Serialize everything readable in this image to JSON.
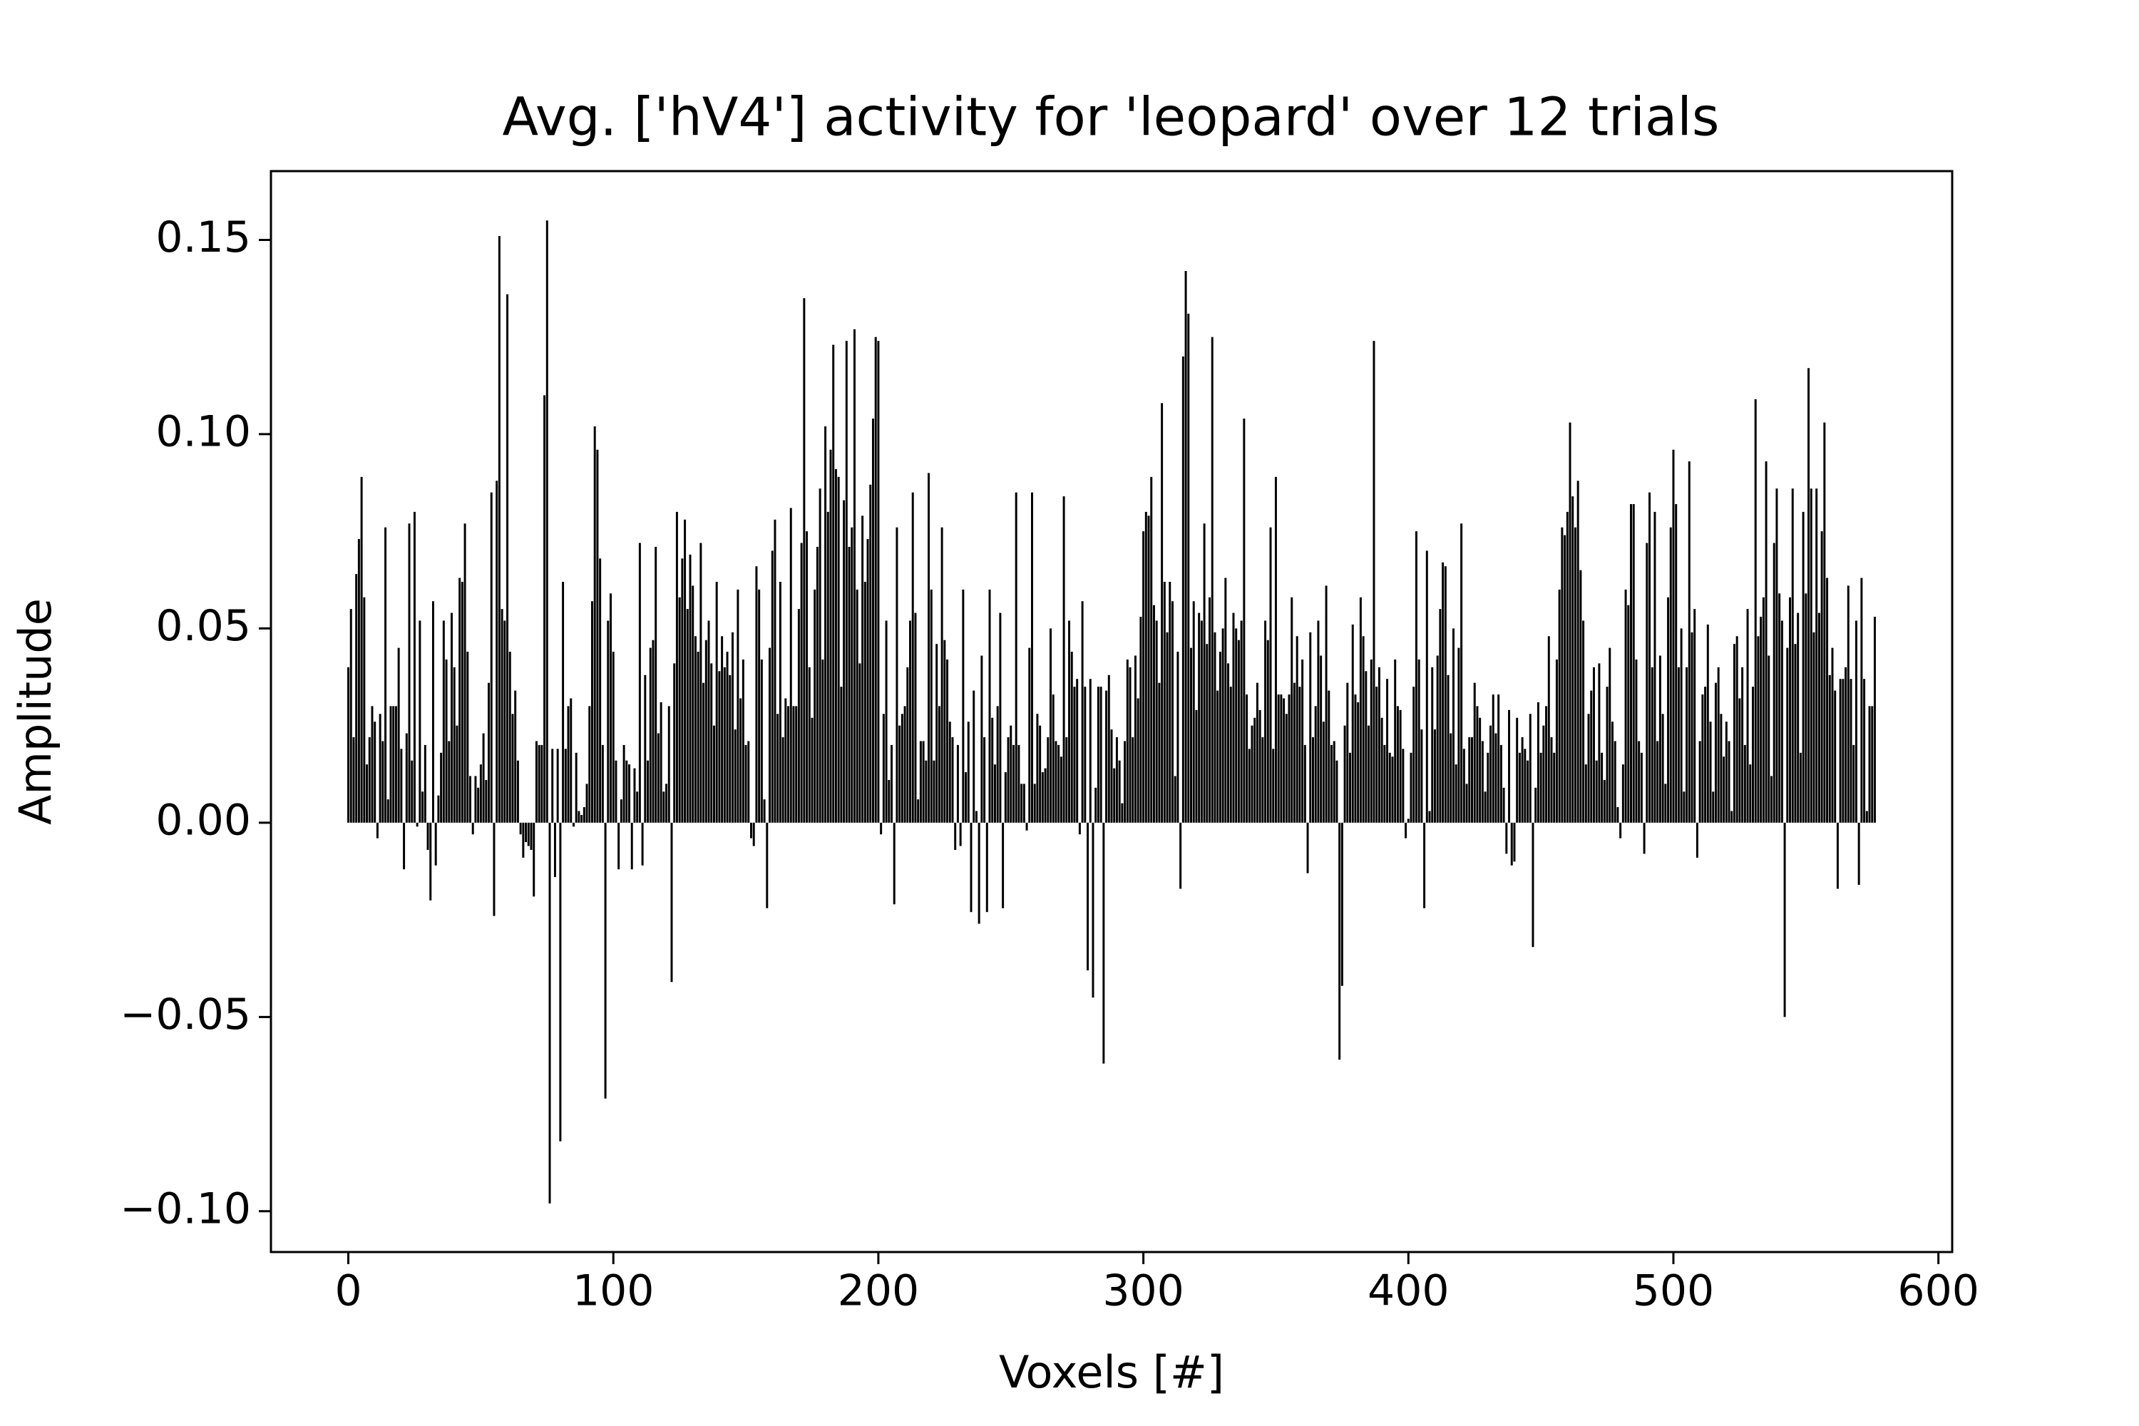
{
  "chart_data": {
    "type": "bar",
    "title": "Avg. ['hV4'] activity for 'leopard' over 12 trials",
    "xlabel": "Voxels [#]",
    "ylabel": "Amplitude",
    "color": "#000000",
    "bar_width": 0.8,
    "xlim": [
      -29.2,
      605.2
    ],
    "ylim": [
      -0.1105,
      0.1677
    ],
    "xticks": [
      0,
      100,
      200,
      300,
      400,
      500,
      600
    ],
    "yticks": [
      {
        "value": -0.1,
        "label": "−0.10"
      },
      {
        "value": -0.05,
        "label": "−0.05"
      },
      {
        "value": 0,
        "label": "0.00"
      },
      0.05,
      {
        "value": 0.1,
        "label": "0.10"
      },
      0.15
    ],
    "x": [
      0,
      1,
      2,
      3,
      4,
      5,
      6,
      7,
      8,
      9,
      10,
      11,
      12,
      13,
      14,
      15,
      16,
      17,
      18,
      19,
      20,
      21,
      22,
      23,
      24,
      25,
      26,
      27,
      28,
      29,
      30,
      31,
      32,
      33,
      34,
      35,
      36,
      37,
      38,
      39,
      40,
      41,
      42,
      43,
      44,
      45,
      46,
      47,
      48,
      49,
      50,
      51,
      52,
      53,
      54,
      55,
      56,
      57,
      58,
      59,
      60,
      61,
      62,
      63,
      64,
      65,
      66,
      67,
      68,
      69,
      70,
      71,
      72,
      73,
      74,
      75,
      76,
      77,
      78,
      79,
      80,
      81,
      82,
      83,
      84,
      85,
      86,
      87,
      88,
      89,
      90,
      91,
      92,
      93,
      94,
      95,
      96,
      97,
      98,
      99,
      100,
      101,
      102,
      103,
      104,
      105,
      106,
      107,
      108,
      109,
      110,
      111,
      112,
      113,
      114,
      115,
      116,
      117,
      118,
      119,
      120,
      121,
      122,
      123,
      124,
      125,
      126,
      127,
      128,
      129,
      130,
      131,
      132,
      133,
      134,
      135,
      136,
      137,
      138,
      139,
      140,
      141,
      142,
      143,
      144,
      145,
      146,
      147,
      148,
      149,
      150,
      151,
      152,
      153,
      154,
      155,
      156,
      157,
      158,
      159,
      160,
      161,
      162,
      163,
      164,
      165,
      166,
      167,
      168,
      169,
      170,
      171,
      172,
      173,
      174,
      175,
      176,
      177,
      178,
      179,
      180,
      181,
      182,
      183,
      184,
      185,
      186,
      187,
      188,
      189,
      190,
      191,
      192,
      193,
      194,
      195,
      196,
      197,
      198,
      199,
      200,
      201,
      202,
      203,
      204,
      205,
      206,
      207,
      208,
      209,
      210,
      211,
      212,
      213,
      214,
      215,
      216,
      217,
      218,
      219,
      220,
      221,
      222,
      223,
      224,
      225,
      226,
      227,
      228,
      229,
      230,
      231,
      232,
      233,
      234,
      235,
      236,
      237,
      238,
      239,
      240,
      241,
      242,
      243,
      244,
      245,
      246,
      247,
      248,
      249,
      250,
      251,
      252,
      253,
      254,
      255,
      256,
      257,
      258,
      259,
      260,
      261,
      262,
      263,
      264,
      265,
      266,
      267,
      268,
      269,
      270,
      271,
      272,
      273,
      274,
      275,
      276,
      277,
      278,
      279,
      280,
      281,
      282,
      283,
      284,
      285,
      286,
      287,
      288,
      289,
      290,
      291,
      292,
      293,
      294,
      295,
      296,
      297,
      298,
      299,
      300,
      301,
      302,
      303,
      304,
      305,
      306,
      307,
      308,
      309,
      310,
      311,
      312,
      313,
      314,
      315,
      316,
      317,
      318,
      319,
      320,
      321,
      322,
      323,
      324,
      325,
      326,
      327,
      328,
      329,
      330,
      331,
      332,
      333,
      334,
      335,
      336,
      337,
      338,
      339,
      340,
      341,
      342,
      343,
      344,
      345,
      346,
      347,
      348,
      349,
      350,
      351,
      352,
      353,
      354,
      355,
      356,
      357,
      358,
      359,
      360,
      361,
      362,
      363,
      364,
      365,
      366,
      367,
      368,
      369,
      370,
      371,
      372,
      373,
      374,
      375,
      376,
      377,
      378,
      379,
      380,
      381,
      382,
      383,
      384,
      385,
      386,
      387,
      388,
      389,
      390,
      391,
      392,
      393,
      394,
      395,
      396,
      397,
      398,
      399,
      400,
      401,
      402,
      403,
      404,
      405,
      406,
      407,
      408,
      409,
      410,
      411,
      412,
      413,
      414,
      415,
      416,
      417,
      418,
      419,
      420,
      421,
      422,
      423,
      424,
      425,
      426,
      427,
      428,
      429,
      430,
      431,
      432,
      433,
      434,
      435,
      436,
      437,
      438,
      439,
      440,
      441,
      442,
      443,
      444,
      445,
      446,
      447,
      448,
      449,
      450,
      451,
      452,
      453,
      454,
      455,
      456,
      457,
      458,
      459,
      460,
      461,
      462,
      463,
      464,
      465,
      466,
      467,
      468,
      469,
      470,
      471,
      472,
      473,
      474,
      475,
      476,
      477,
      478,
      479,
      480,
      481,
      482,
      483,
      484,
      485,
      486,
      487,
      488,
      489,
      490,
      491,
      492,
      493,
      494,
      495,
      496,
      497,
      498,
      499,
      500,
      501,
      502,
      503,
      504,
      505,
      506,
      507,
      508,
      509,
      510,
      511,
      512,
      513,
      514,
      515,
      516,
      517,
      518,
      519,
      520,
      521,
      522,
      523,
      524,
      525,
      526,
      527,
      528,
      529,
      530,
      531,
      532,
      533,
      534,
      535,
      536,
      537,
      538,
      539,
      540,
      541,
      542,
      543,
      544,
      545,
      546,
      547,
      548,
      549,
      550,
      551,
      552,
      553,
      554,
      555,
      556,
      557,
      558,
      559,
      560,
      561,
      562,
      563,
      564,
      565,
      566,
      567,
      568,
      569,
      570,
      571,
      572,
      573,
      574,
      575,
      576
    ],
    "values": [
      0.04,
      0.055,
      0.022,
      0.064,
      0.073,
      0.089,
      0.058,
      0.015,
      0.022,
      0.03,
      0.026,
      -0.004,
      0.028,
      0.021,
      0.076,
      0.006,
      0.03,
      0.03,
      0.03,
      0.045,
      0.019,
      -0.012,
      0.023,
      0.077,
      0.016,
      0.08,
      -0.001,
      0.052,
      0.008,
      0.02,
      -0.007,
      -0.02,
      0.057,
      -0.011,
      0.007,
      0.018,
      0.052,
      0.042,
      0.021,
      0.054,
      0.04,
      0.025,
      0.063,
      0.062,
      0.077,
      0.044,
      0.012,
      -0.003,
      0.012,
      0.009,
      0.015,
      0.023,
      0.011,
      0.036,
      0.085,
      -0.024,
      0.088,
      0.151,
      0.055,
      0.052,
      0.136,
      0.044,
      0.028,
      0.034,
      0.016,
      -0.003,
      -0.009,
      -0.005,
      -0.006,
      -0.007,
      -0.019,
      0.021,
      0.02,
      0.02,
      0.11,
      0.155,
      -0.098,
      0.019,
      -0.014,
      0.019,
      -0.082,
      0.062,
      0.019,
      0.03,
      0.032,
      -0.001,
      0.018,
      0.003,
      0.002,
      0.004,
      0.01,
      0.03,
      0.057,
      0.102,
      0.096,
      0.068,
      0.02,
      -0.071,
      0.052,
      0.059,
      0.044,
      0.016,
      -0.012,
      0.006,
      0.02,
      0.016,
      0.015,
      -0.012,
      0.014,
      0.008,
      0.072,
      -0.011,
      0.038,
      0.016,
      0.045,
      0.047,
      0.071,
      0.023,
      0.031,
      0.008,
      0.01,
      0.03,
      -0.041,
      0.041,
      0.08,
      0.058,
      0.068,
      0.078,
      0.055,
      0.069,
      0.061,
      0.048,
      0.044,
      0.072,
      0.036,
      0.047,
      0.052,
      0.041,
      0.025,
      0.062,
      0.039,
      0.048,
      0.04,
      0.044,
      0.038,
      0.049,
      0.024,
      0.06,
      0.032,
      0.042,
      0.02,
      0.021,
      -0.004,
      -0.006,
      0.066,
      0.06,
      0.042,
      0.006,
      -0.022,
      0.045,
      0.07,
      0.078,
      0.028,
      0.062,
      0.022,
      0.032,
      0.03,
      0.081,
      0.03,
      0.03,
      0.055,
      0.072,
      0.135,
      0.075,
      0.04,
      0.027,
      0.06,
      0.071,
      0.086,
      0.042,
      0.102,
      0.08,
      0.096,
      0.123,
      0.091,
      0.089,
      0.035,
      0.083,
      0.124,
      0.071,
      0.076,
      0.127,
      0.06,
      0.041,
      0.079,
      0.062,
      0.073,
      0.087,
      0.104,
      0.125,
      0.124,
      -0.003,
      0.028,
      0.052,
      0.011,
      0.02,
      -0.021,
      0.076,
      0.025,
      0.028,
      0.03,
      0.04,
      0.052,
      0.085,
      0.054,
      0.006,
      0.021,
      0.021,
      0.016,
      0.09,
      0.06,
      0.016,
      0.046,
      0.03,
      0.076,
      0.047,
      0.042,
      0.026,
      0.022,
      -0.007,
      0.02,
      -0.006,
      0.06,
      0.013,
      0.026,
      -0.023,
      0.034,
      0.003,
      -0.026,
      0.043,
      0.022,
      -0.023,
      0.06,
      0.027,
      0.015,
      0.03,
      0.054,
      -0.022,
      0.013,
      0.022,
      0.025,
      0.02,
      0.085,
      0.02,
      0.01,
      0.01,
      -0.002,
      0.045,
      0.085,
      0.01,
      0.028,
      0.025,
      0.013,
      0.014,
      0.022,
      0.05,
      0.033,
      0.021,
      0.02,
      0.017,
      0.084,
      0.022,
      0.052,
      0.044,
      0.035,
      0.037,
      -0.003,
      0.057,
      0.035,
      -0.038,
      0.037,
      -0.045,
      0.009,
      0.035,
      0.035,
      -0.062,
      0.034,
      0.038,
      0.024,
      0.014,
      0.022,
      0.016,
      0.005,
      0.021,
      0.042,
      0.04,
      0.022,
      0.043,
      0.032,
      0.053,
      0.075,
      0.08,
      0.079,
      0.089,
      0.056,
      0.052,
      0.036,
      0.108,
      0.062,
      0.049,
      0.062,
      0.057,
      0.012,
      0.044,
      -0.017,
      0.12,
      0.142,
      0.131,
      0.045,
      0.057,
      0.029,
      0.054,
      0.052,
      0.077,
      0.046,
      0.058,
      0.125,
      0.049,
      0.034,
      0.044,
      0.05,
      0.063,
      0.041,
      0.035,
      0.054,
      0.05,
      0.047,
      0.052,
      0.104,
      0.033,
      0.019,
      0.025,
      0.027,
      0.036,
      0.029,
      0.022,
      0.052,
      0.047,
      0.076,
      0.019,
      0.089,
      0.033,
      0.033,
      0.032,
      0.028,
      0.033,
      0.058,
      0.036,
      0.048,
      0.035,
      0.042,
      0.02,
      -0.013,
      0.049,
      0.022,
      0.03,
      0.052,
      0.043,
      0.026,
      0.061,
      0.034,
      0.02,
      0.021,
      0.016,
      -0.061,
      -0.042,
      0.025,
      0.036,
      0.018,
      0.051,
      0.033,
      0.031,
      0.058,
      0.048,
      0.039,
      0.025,
      0.042,
      0.124,
      0.035,
      0.04,
      0.027,
      0.02,
      0.037,
      0.018,
      0.017,
      0.042,
      0.03,
      0.029,
      0.019,
      -0.004,
      0.001,
      0.018,
      0.035,
      0.075,
      0.042,
      0.024,
      -0.022,
      0.07,
      0.003,
      0.04,
      0.024,
      0.043,
      0.055,
      0.067,
      0.066,
      0.038,
      0.023,
      0.05,
      0.015,
      0.045,
      0.077,
      0.019,
      0.01,
      0.022,
      0.022,
      0.036,
      0.03,
      0.027,
      0.021,
      0.008,
      0.018,
      0.025,
      0.033,
      0.023,
      0.033,
      0.02,
      0.009,
      -0.008,
      0.029,
      -0.011,
      -0.01,
      0.027,
      0.018,
      0.022,
      0.019,
      0.016,
      0.028,
      -0.032,
      0.009,
      0.031,
      0.018,
      0.025,
      0.03,
      0.048,
      0.022,
      0.018,
      0.042,
      0.06,
      0.076,
      0.074,
      0.08,
      0.103,
      0.084,
      0.076,
      0.088,
      0.065,
      0.052,
      0.015,
      0.028,
      0.034,
      0.04,
      0.016,
      0.041,
      0.018,
      0.011,
      0.035,
      0.045,
      0.026,
      0.021,
      0.004,
      -0.004,
      0.015,
      0.06,
      0.056,
      0.082,
      0.082,
      0.042,
      0.021,
      0.018,
      -0.008,
      0.072,
      0.085,
      0.04,
      0.08,
      0.021,
      0.043,
      0.028,
      0.01,
      0.058,
      0.076,
      0.096,
      0.082,
      0.04,
      0.05,
      0.008,
      0.04,
      0.093,
      0.049,
      0.055,
      -0.009,
      0.021,
      0.033,
      0.035,
      0.051,
      0.026,
      0.008,
      0.036,
      0.04,
      0.028,
      0.017,
      0.026,
      0.021,
      0.003,
      0.046,
      0.048,
      0.032,
      0.04,
      0.02,
      0.055,
      0.015,
      0.035,
      0.109,
      0.048,
      0.053,
      0.058,
      0.093,
      0.043,
      0.012,
      0.072,
      0.086,
      0.059,
      0.052,
      -0.05,
      0.045,
      0.058,
      0.086,
      0.046,
      0.054,
      0.018,
      0.08,
      0.059,
      0.117,
      0.086,
      0.049,
      0.086,
      0.054,
      0.075,
      0.103,
      0.063,
      0.038,
      0.045,
      0.034,
      -0.017,
      0.037,
      0.037,
      0.04,
      0.061,
      0.037,
      0.02,
      0.052,
      -0.016,
      0.063,
      0.037,
      0.003,
      0.03,
      0.03,
      0.053
    ]
  }
}
